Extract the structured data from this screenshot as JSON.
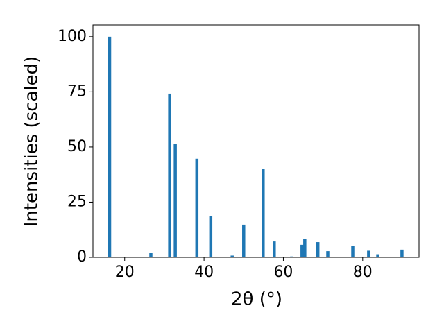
{
  "chart_data": {
    "type": "bar",
    "x_label": "2θ (°)",
    "y_label": "Intensities (scaled)",
    "x": [
      16.2,
      26.6,
      31.35,
      32.75,
      38.2,
      41.7,
      47.1,
      50.0,
      54.9,
      57.7,
      62.1,
      64.7,
      65.4,
      68.7,
      71.2,
      75.0,
      77.5,
      81.5,
      83.8,
      89.9
    ],
    "values": [
      100,
      2.2,
      74.2,
      51.3,
      44.7,
      18.6,
      0.8,
      14.8,
      40,
      7.2,
      0.4,
      5.7,
      8.2,
      6.9,
      2.8,
      0.3,
      5.3,
      3.0,
      1.4,
      3.5
    ],
    "color": "#1f77b4",
    "xlim": [
      12,
      94.2
    ],
    "ylim": [
      0,
      105.3
    ],
    "xticks": [
      20,
      40,
      60,
      80
    ],
    "yticks": [
      0,
      25,
      50,
      75,
      100
    ]
  }
}
